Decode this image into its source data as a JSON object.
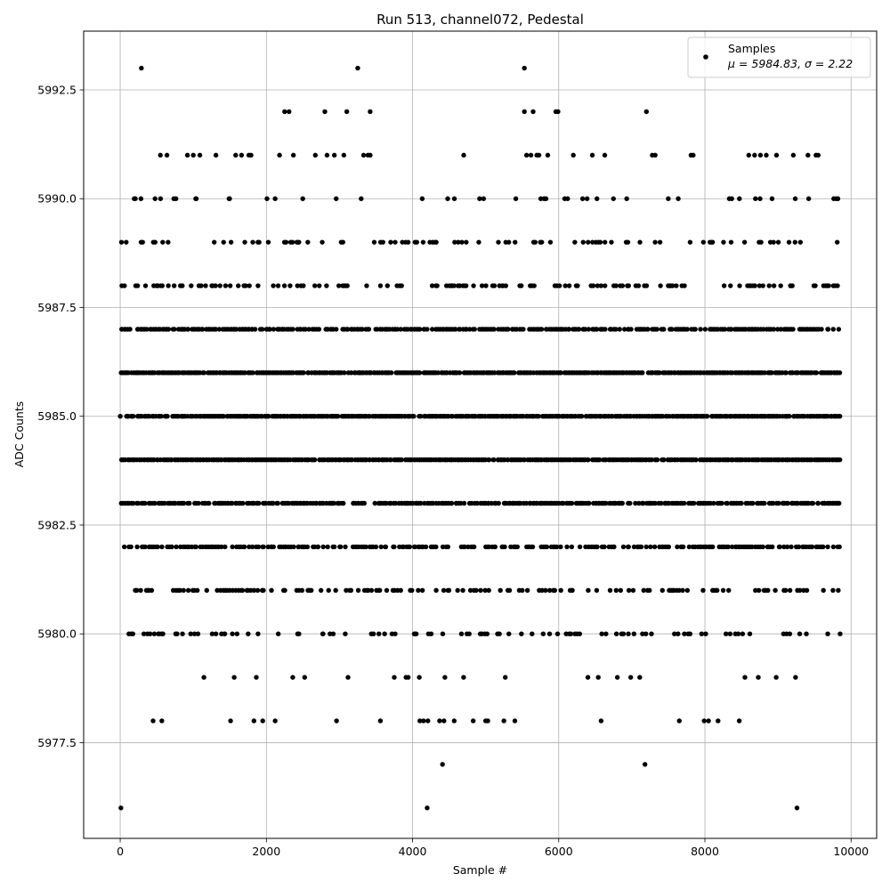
{
  "chart_data": {
    "type": "scatter",
    "title": "Run 513, channel072, Pedestal",
    "xlabel": "Sample #",
    "ylabel": "ADC Counts",
    "xlim": [
      -500,
      10350
    ],
    "ylim": [
      5975.3,
      5993.85
    ],
    "xticks": [
      0,
      2000,
      4000,
      6000,
      8000,
      10000
    ],
    "xtick_labels": [
      "0",
      "2000",
      "4000",
      "6000",
      "8000",
      "10000"
    ],
    "yticks": [
      5977.5,
      5980.0,
      5982.5,
      5985.0,
      5987.5,
      5990.0,
      5992.5
    ],
    "ytick_labels": [
      "5977.5",
      "5980.0",
      "5982.5",
      "5985.0",
      "5987.5",
      "5990.0",
      "5992.5"
    ],
    "grid": true,
    "legend_position": "top-right",
    "legend": {
      "label": "Samples",
      "stats": "μ = 5984.83, σ = 2.22"
    },
    "marker_color": "#000000",
    "n_samples": 9850,
    "series": [
      {
        "name": "Samples",
        "points": [
          [
            290,
            5993
          ],
          [
            3250,
            5993
          ],
          [
            5530,
            5993
          ],
          [
            2250,
            5992
          ],
          [
            2310,
            5992
          ],
          [
            2800,
            5992
          ],
          [
            3100,
            5992
          ],
          [
            3420,
            5992
          ],
          [
            5530,
            5992
          ],
          [
            5650,
            5992
          ],
          [
            5960,
            5992
          ],
          [
            5990,
            5992
          ],
          [
            7200,
            5992
          ],
          [
            550,
            5991
          ],
          [
            640,
            5991
          ],
          [
            920,
            5991
          ],
          [
            1000,
            5991
          ],
          [
            1090,
            5991
          ],
          [
            1310,
            5991
          ],
          [
            1580,
            5991
          ],
          [
            1660,
            5991
          ],
          [
            1760,
            5991
          ],
          [
            1790,
            5991
          ],
          [
            2180,
            5991
          ],
          [
            2370,
            5991
          ],
          [
            2670,
            5991
          ],
          [
            2830,
            5991
          ],
          [
            2930,
            5991
          ],
          [
            3060,
            5991
          ],
          [
            3330,
            5991
          ],
          [
            3390,
            5991
          ],
          [
            3420,
            5991
          ],
          [
            4700,
            5991
          ],
          [
            5560,
            5991
          ],
          [
            5620,
            5991
          ],
          [
            5700,
            5991
          ],
          [
            5730,
            5991
          ],
          [
            5850,
            5991
          ],
          [
            6200,
            5991
          ],
          [
            6460,
            5991
          ],
          [
            6630,
            5991
          ],
          [
            7280,
            5991
          ],
          [
            7320,
            5991
          ],
          [
            7810,
            5991
          ],
          [
            7840,
            5991
          ],
          [
            8600,
            5991
          ],
          [
            8680,
            5991
          ],
          [
            8760,
            5991
          ],
          [
            8840,
            5991
          ],
          [
            8980,
            5991
          ],
          [
            9210,
            5991
          ],
          [
            9410,
            5991
          ],
          [
            9520,
            5991
          ],
          [
            9550,
            5991
          ],
          [
            10,
            5976
          ],
          [
            4200,
            5976
          ],
          [
            9260,
            5976
          ],
          [
            4410,
            5977
          ],
          [
            7180,
            5977
          ],
          [
            450,
            5978
          ],
          [
            570,
            5978
          ],
          [
            1510,
            5978
          ],
          [
            1830,
            5978
          ],
          [
            1950,
            5978
          ],
          [
            2120,
            5978
          ],
          [
            2960,
            5978
          ],
          [
            3560,
            5978
          ],
          [
            4100,
            5978
          ],
          [
            4150,
            5978
          ],
          [
            4210,
            5978
          ],
          [
            4370,
            5978
          ],
          [
            4430,
            5978
          ],
          [
            4570,
            5978
          ],
          [
            4830,
            5978
          ],
          [
            5000,
            5978
          ],
          [
            5030,
            5978
          ],
          [
            5250,
            5978
          ],
          [
            5400,
            5978
          ],
          [
            6580,
            5978
          ],
          [
            7650,
            5978
          ],
          [
            7990,
            5978
          ],
          [
            8050,
            5978
          ],
          [
            8180,
            5978
          ],
          [
            8470,
            5978
          ]
        ]
      }
    ],
    "dense_levels": [
      {
        "y": 5990,
        "density": 0.11,
        "gaps": []
      },
      {
        "y": 5989,
        "density": 0.22,
        "gaps": []
      },
      {
        "y": 5988,
        "density": 0.32,
        "gaps": []
      },
      {
        "y": 5987,
        "density": 0.7,
        "gaps": []
      },
      {
        "y": 5986,
        "density": 0.9,
        "gaps": []
      },
      {
        "y": 5985,
        "density": 0.92,
        "gaps": []
      },
      {
        "y": 5984,
        "density": 0.95,
        "gaps": []
      },
      {
        "y": 5983,
        "density": 0.75,
        "gaps": []
      },
      {
        "y": 5982,
        "density": 0.55,
        "gaps": []
      },
      {
        "y": 5981,
        "density": 0.32,
        "gaps": []
      },
      {
        "y": 5980,
        "density": 0.22,
        "gaps": []
      },
      {
        "y": 5979,
        "density": 0.06,
        "gaps": []
      }
    ]
  }
}
